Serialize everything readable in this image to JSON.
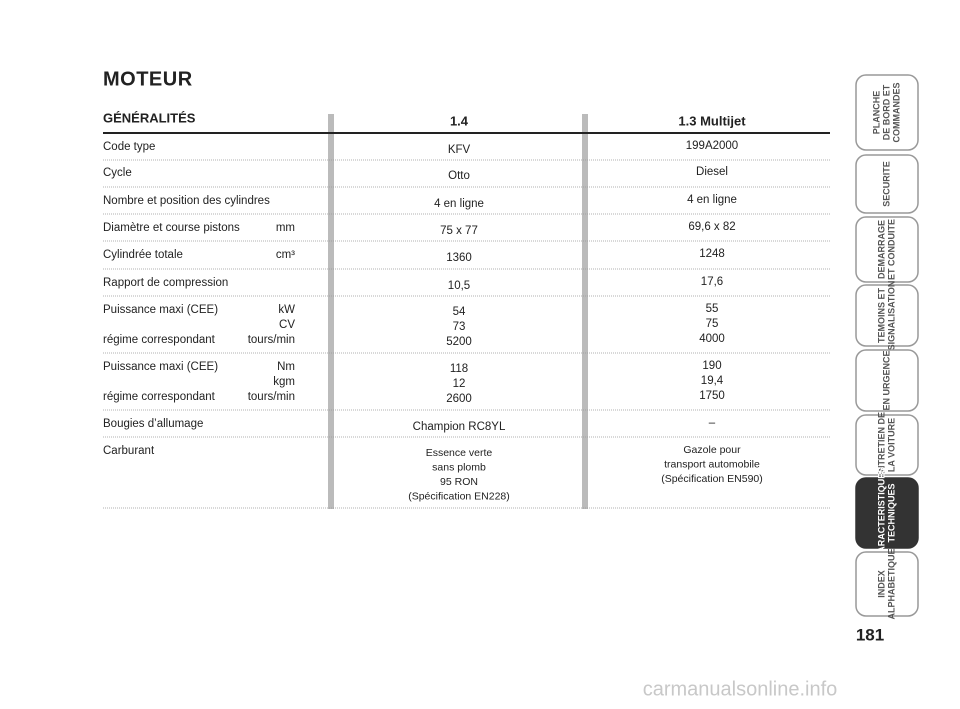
{
  "header": {
    "title": "MOTEUR"
  },
  "table": {
    "columns": [
      "GÉNÉRALITÉS",
      "1.4",
      "1.3 Multijet"
    ],
    "rows": [
      {
        "lines": [
          {
            "text": "Code type"
          }
        ],
        "c1": [
          "KFV"
        ],
        "c2": [
          "199A2000"
        ]
      },
      {
        "lines": [
          {
            "text": "Cycle"
          }
        ],
        "c1": [
          "Otto"
        ],
        "c2": [
          "Diesel"
        ]
      },
      {
        "lines": [
          {
            "text": "Nombre et position des cylindres"
          }
        ],
        "c1": [
          "4 en ligne"
        ],
        "c2": [
          "4 en ligne"
        ]
      },
      {
        "lines": [
          {
            "text": "Diamètre et course pistons",
            "unit": "mm"
          }
        ],
        "c1": [
          "75 x 77"
        ],
        "c2": [
          "69,6 x 82"
        ]
      },
      {
        "lines": [
          {
            "text": "Cylindrée totale",
            "unit": "cm³"
          }
        ],
        "c1": [
          "1360"
        ],
        "c2": [
          "1248"
        ]
      },
      {
        "lines": [
          {
            "text": "Rapport de compression"
          }
        ],
        "c1": [
          "10,5"
        ],
        "c2": [
          "17,6"
        ]
      },
      {
        "lines": [
          {
            "text": "Puissance maxi (CEE)",
            "unit": "kW"
          },
          {
            "unit": "CV"
          },
          {
            "text": "régime correspondant",
            "unit": "tours/min"
          }
        ],
        "c1": [
          "54",
          "73",
          "5200"
        ],
        "c2": [
          "55",
          "75",
          "4000"
        ]
      },
      {
        "lines": [
          {
            "text": "Puissance maxi (CEE)",
            "unit": "Nm"
          },
          {
            "unit": "kgm"
          },
          {
            "text": "régime correspondant",
            "unit": "tours/min"
          }
        ],
        "c1": [
          "118",
          "12",
          "2600"
        ],
        "c2": [
          "190",
          "19,4",
          "1750"
        ]
      },
      {
        "lines": [
          {
            "text": "Bougies d’allumage"
          }
        ],
        "c1": [
          "Champion RC8YL"
        ],
        "c2": [
          "–"
        ]
      },
      {
        "lines": [
          {
            "text": "Carburant"
          }
        ],
        "c1": [
          "Essence verte",
          "sans plomb",
          "95 RON",
          "(Spécification EN228)"
        ],
        "c2": [
          "Gazole pour",
          "transport automobile",
          "(Spécification EN590)"
        ]
      }
    ]
  },
  "tabs": [
    {
      "lines": [
        "PLANCHE",
        "DE BORD ET",
        "COMMANDES"
      ]
    },
    {
      "lines": [
        "SECURITE"
      ]
    },
    {
      "lines": [
        "DEMARRAGE",
        "ET CONDUITE"
      ]
    },
    {
      "lines": [
        "TEMOINS ET",
        "SIGNALISATION"
      ]
    },
    {
      "lines": [
        "EN URGENCE"
      ]
    },
    {
      "lines": [
        "ENTRETIEN DE",
        "LA VOITURE"
      ]
    },
    {
      "lines": [
        "CARACTERISTIQUES",
        "TECHNIQUES"
      ],
      "active": true
    },
    {
      "lines": [
        "INDEX",
        "ALPHABETIQUE"
      ]
    }
  ],
  "page_number": "181",
  "watermark": "carmanualsonline.info"
}
